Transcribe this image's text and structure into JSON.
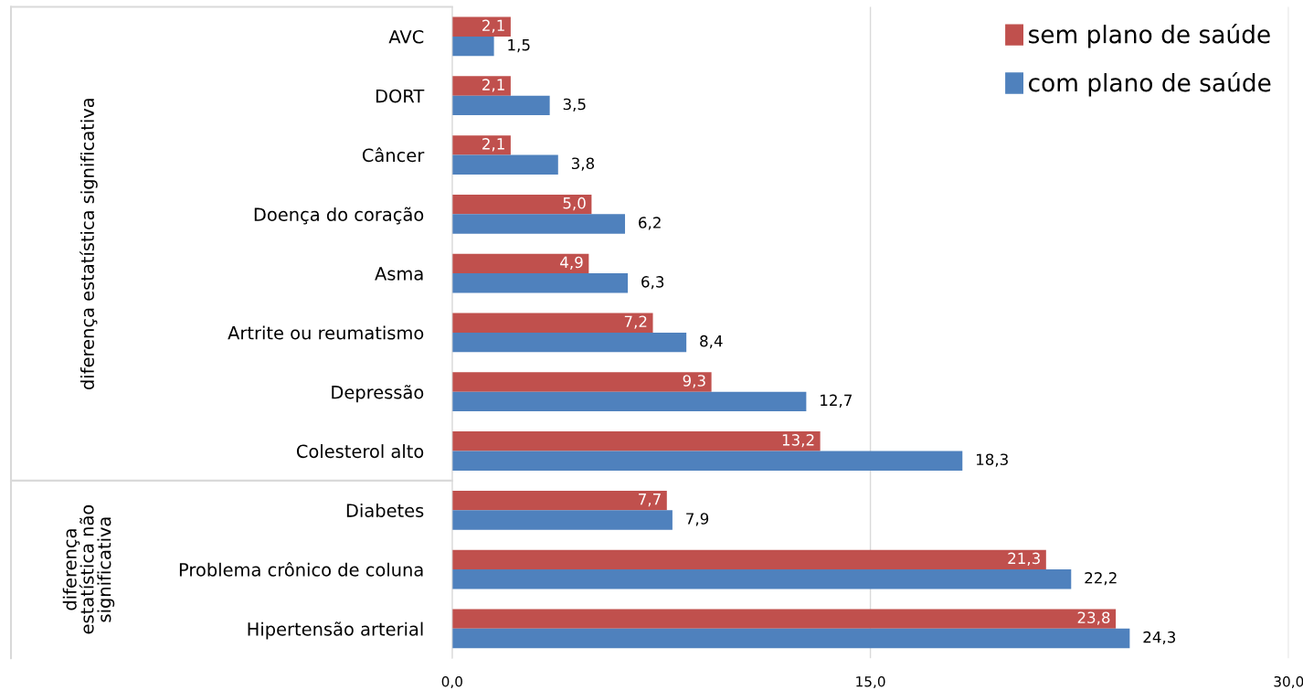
{
  "chart_data": {
    "type": "bar",
    "orientation": "horizontal",
    "categories": [
      "AVC",
      "DORT",
      "Câncer",
      "Doença do coração",
      "Asma",
      "Artrite ou reumatismo",
      "Depressão",
      "Colesterol alto",
      "Diabetes",
      "Problema crônico de coluna",
      "Hipertensão arterial"
    ],
    "series": [
      {
        "name": "sem plano de saúde",
        "color": "#c0504d",
        "values": [
          2.1,
          2.1,
          2.1,
          5.0,
          4.9,
          7.2,
          9.3,
          13.2,
          7.7,
          21.3,
          23.8
        ],
        "value_labels": [
          "2,1",
          "2,1",
          "2,1",
          "5,0",
          "4,9",
          "7,2",
          "9,3",
          "13,2",
          "7,7",
          "21,3",
          "23,8"
        ]
      },
      {
        "name": "com plano de saúde",
        "color": "#4f81bd",
        "values": [
          1.5,
          3.5,
          3.8,
          6.2,
          6.3,
          8.4,
          12.7,
          18.3,
          7.9,
          22.2,
          24.3
        ],
        "value_labels": [
          "1,5",
          "3,5",
          "3,8",
          "6,2",
          "6,3",
          "8,4",
          "12,7",
          "18,3",
          "7,9",
          "22,2",
          "24,3"
        ]
      }
    ],
    "xlim": [
      0,
      30
    ],
    "xticks": [
      {
        "value": 0,
        "label": "0,0"
      },
      {
        "value": 15,
        "label": "15,0"
      },
      {
        "value": 30,
        "label": "30,0"
      }
    ],
    "grid": "x",
    "legend": "top right",
    "annotations": [
      "diferença estatística significativa",
      "diferença\nestatística não\nsignificativa"
    ]
  }
}
